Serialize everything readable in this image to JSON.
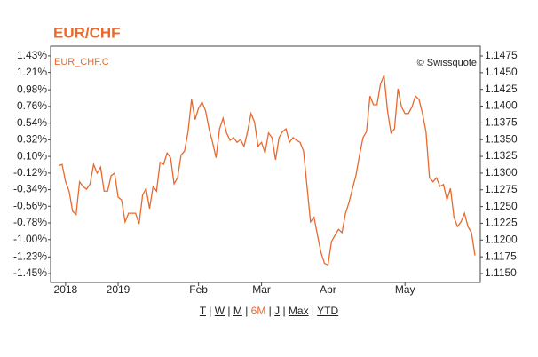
{
  "chart_data": {
    "type": "line",
    "title": "EUR/CHF",
    "source": "© Swissquote",
    "categories": [
      null,
      null,
      "2018",
      null,
      null,
      null,
      null,
      null,
      null,
      null,
      null,
      null,
      null,
      null,
      null,
      null,
      null,
      "2019",
      null,
      null,
      null,
      null,
      null,
      null,
      null,
      null,
      null,
      null,
      null,
      null,
      null,
      null,
      null,
      null,
      null,
      null,
      null,
      null,
      null,
      null,
      "Feb",
      null,
      null,
      null,
      null,
      null,
      null,
      null,
      null,
      null,
      null,
      null,
      null,
      null,
      null,
      null,
      null,
      null,
      "Mar",
      null,
      null,
      null,
      null,
      null,
      null,
      null,
      null,
      null,
      null,
      null,
      null,
      null,
      null,
      null,
      null,
      null,
      null,
      "Apr",
      null,
      null,
      null,
      null,
      null,
      null,
      null,
      null,
      null,
      null,
      null,
      null,
      null,
      null,
      null,
      null,
      null,
      null,
      null,
      null,
      null,
      "May",
      null,
      null,
      null,
      null,
      null,
      null,
      null,
      null,
      null,
      null,
      null,
      null,
      null,
      null,
      null,
      null,
      null,
      null,
      null,
      null
    ],
    "series": [
      {
        "name": "EUR_CHF.C",
        "color": "#e8692e",
        "axis": "y2",
        "values": [
          1.1311,
          1.1313,
          1.1287,
          1.1273,
          1.1243,
          1.1238,
          1.1287,
          1.128,
          1.1276,
          1.1284,
          1.1313,
          1.13,
          1.1309,
          1.1273,
          1.1273,
          1.1296,
          1.13,
          1.1264,
          1.126,
          1.1227,
          1.124,
          1.124,
          1.124,
          1.1224,
          1.1267,
          1.1277,
          1.1247,
          1.128,
          1.1273,
          1.1316,
          1.1313,
          1.133,
          1.1323,
          1.1284,
          1.1293,
          1.1327,
          1.1333,
          1.1362,
          1.141,
          1.138,
          1.1397,
          1.1406,
          1.1393,
          1.1366,
          1.1346,
          1.1323,
          1.1366,
          1.1382,
          1.136,
          1.1349,
          1.1353,
          1.1346,
          1.135,
          1.134,
          1.1362,
          1.1389,
          1.1376,
          1.134,
          1.1346,
          1.133,
          1.136,
          1.1353,
          1.132,
          1.1353,
          1.1362,
          1.1366,
          1.1346,
          1.1353,
          1.1349,
          1.1346,
          1.1333,
          1.128,
          1.1227,
          1.1234,
          1.1207,
          1.1181,
          1.1165,
          1.1163,
          1.1198,
          1.1207,
          1.1216,
          1.1211,
          1.124,
          1.1256,
          1.1277,
          1.1297,
          1.1327,
          1.1353,
          1.1362,
          1.1415,
          1.1402,
          1.1402,
          1.1433,
          1.1446,
          1.1393,
          1.136,
          1.1366,
          1.1426,
          1.1399,
          1.1389,
          1.1389,
          1.1399,
          1.1415,
          1.141,
          1.1389,
          1.1362,
          1.1293,
          1.1287,
          1.1293,
          1.128,
          1.1283,
          1.126,
          1.1277,
          1.1234,
          1.122,
          1.1227,
          1.124,
          1.122,
          1.1211,
          1.1177
        ]
      }
    ],
    "ylim": [
      -1.567,
      1.558
    ],
    "yticks": [
      {
        "value": 1.43,
        "label": "1.43%"
      },
      {
        "value": 1.21,
        "label": "1.21%"
      },
      {
        "value": 0.98,
        "label": "0.98%"
      },
      {
        "value": 0.76,
        "label": "0.76%"
      },
      {
        "value": 0.54,
        "label": "0.54%"
      },
      {
        "value": 0.32,
        "label": "0.32%"
      },
      {
        "value": 0.1,
        "label": "0.10%"
      },
      {
        "value": -0.12,
        "label": "-0.12%"
      },
      {
        "value": -0.34,
        "label": "-0.34%"
      },
      {
        "value": -0.56,
        "label": "-0.56%"
      },
      {
        "value": -0.78,
        "label": "-0.78%"
      },
      {
        "value": -1.0,
        "label": "-1.00%"
      },
      {
        "value": -1.23,
        "label": "-1.23%"
      },
      {
        "value": -1.45,
        "label": "-1.45%"
      }
    ],
    "y2lim": [
      1.11367,
      1.14896
    ],
    "y2ticks": [
      1.1475,
      {
        "value": 1.145,
        "label": "1.1450"
      },
      1.1425,
      {
        "value": 1.14,
        "label": "1.1400"
      },
      1.1375,
      {
        "value": 1.135,
        "label": "1.1350"
      },
      1.1325,
      {
        "value": 1.13,
        "label": "1.1300"
      },
      1.1275,
      {
        "value": 1.125,
        "label": "1.1250"
      },
      1.1225,
      {
        "value": 1.12,
        "label": "1.1200"
      },
      1.1175,
      {
        "value": 1.115,
        "label": "1.1150"
      }
    ],
    "grid": false,
    "ranges": [
      "T",
      "W",
      "M",
      "6M",
      "J",
      "Max",
      "YTD"
    ],
    "active_range": "6M"
  }
}
